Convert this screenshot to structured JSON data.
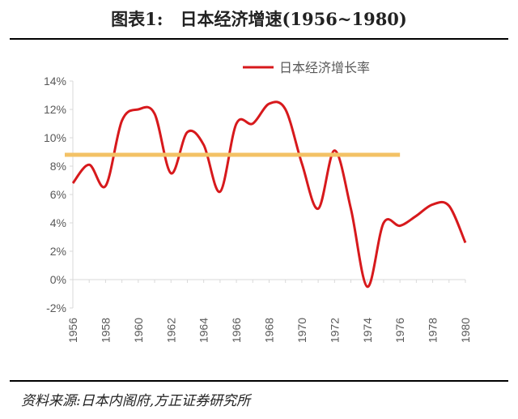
{
  "figure_title": "图表1:　日本经济增速(1956~1980)",
  "source_note": "资料来源:日本内阁府,方正证券研究所",
  "colors": {
    "series_line": "#d7191c",
    "average_line": "#f3c266",
    "axis": "#d9d9d9",
    "tick_text": "#595959"
  },
  "chart_data": {
    "type": "line",
    "title": "",
    "xlabel": "",
    "ylabel": "",
    "ylim": [
      -2,
      14
    ],
    "y_ticks": [
      -2,
      0,
      2,
      4,
      6,
      8,
      10,
      12,
      14
    ],
    "y_tick_labels": [
      "-2%",
      "0%",
      "2%",
      "4%",
      "6%",
      "8%",
      "10%",
      "12%",
      "14%"
    ],
    "x_tick_labels": [
      "1956",
      "1958",
      "1960",
      "1962",
      "1964",
      "1966",
      "1968",
      "1970",
      "1972",
      "1974",
      "1976",
      "1978",
      "1980"
    ],
    "x_range": [
      1956,
      1980
    ],
    "legend_position": "top-right",
    "grid": false,
    "series": [
      {
        "name": "日本经济增长率",
        "x": [
          1956,
          1957,
          1958,
          1959,
          1960,
          1961,
          1962,
          1963,
          1964,
          1965,
          1966,
          1967,
          1968,
          1969,
          1970,
          1971,
          1972,
          1973,
          1974,
          1975,
          1976,
          1977,
          1978,
          1979,
          1980
        ],
        "values": [
          6.8,
          8.1,
          6.6,
          11.2,
          12.0,
          11.7,
          7.5,
          10.4,
          9.5,
          6.2,
          11.0,
          11.0,
          12.4,
          12.0,
          8.2,
          5.0,
          9.1,
          5.0,
          -0.5,
          4.0,
          3.8,
          4.5,
          5.3,
          5.2,
          2.6
        ]
      }
    ],
    "reference_line": {
      "value": 8.8,
      "x_start": 1956,
      "x_end": 1976
    }
  }
}
